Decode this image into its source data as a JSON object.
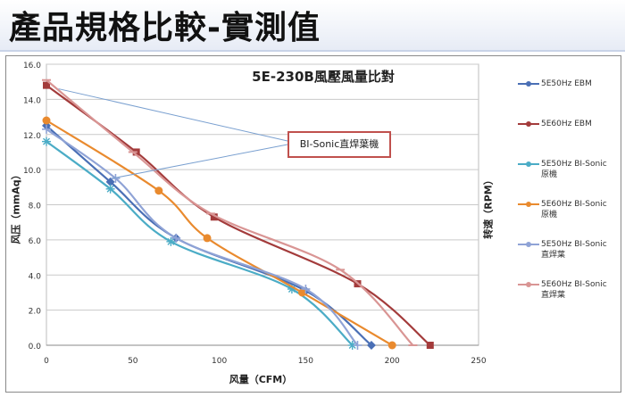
{
  "slide": {
    "title": "產品規格比較-實測值"
  },
  "chart_data": {
    "type": "line",
    "title": "5E-230B風壓風量比對",
    "xlabel": "风量（CFM）",
    "ylabel": "风压（mmAq）",
    "y2label": "转速（RPM）",
    "xlim": [
      0,
      250
    ],
    "ylim": [
      0,
      16
    ],
    "x_ticks": [
      "0",
      "50",
      "100",
      "150",
      "200",
      "250"
    ],
    "y_ticks": [
      "0.0",
      "2.0",
      "4.0",
      "6.0",
      "8.0",
      "10.0",
      "12.0",
      "14.0",
      "16.0"
    ],
    "grid": true,
    "legend_position": "right",
    "annotation": "BI-Sonic直焊葉機",
    "series": [
      {
        "name": "5E50Hz EBM",
        "color": "#4a6fb5",
        "marker": "diamond",
        "x": [
          0,
          37,
          75,
          150,
          188
        ],
        "y": [
          12.5,
          9.3,
          6.1,
          3.1,
          0.0
        ]
      },
      {
        "name": "5E60Hz EBM",
        "color": "#a33b3b",
        "marker": "square",
        "x": [
          0,
          52,
          97,
          180,
          222
        ],
        "y": [
          14.8,
          11.0,
          7.3,
          3.5,
          0.0
        ]
      },
      {
        "name": "5E50Hz BI-Sonic\n原機",
        "color": "#4bacc6",
        "marker": "asterisk",
        "x": [
          0,
          37,
          72,
          142,
          177
        ],
        "y": [
          11.6,
          8.9,
          5.9,
          3.2,
          0.0
        ]
      },
      {
        "name": "5E60Hz BI-Sonic\n原機",
        "color": "#e98a2e",
        "marker": "circle",
        "x": [
          0,
          65,
          93,
          148,
          200
        ],
        "y": [
          12.8,
          8.8,
          6.1,
          3.0,
          0.0
        ]
      },
      {
        "name": "5E50Hz BI-Sonic\n直焊葉",
        "color": "#8fa3d6",
        "marker": "plus",
        "x": [
          0,
          40,
          75,
          150,
          180
        ],
        "y": [
          12.3,
          9.5,
          6.1,
          3.2,
          0.0
        ]
      },
      {
        "name": "5E60Hz BI-Sonic\n直焊葉",
        "color": "#d99594",
        "marker": "dash",
        "x": [
          0,
          50,
          95,
          170,
          212
        ],
        "y": [
          15.1,
          11.0,
          7.5,
          4.3,
          0.0
        ]
      }
    ]
  }
}
